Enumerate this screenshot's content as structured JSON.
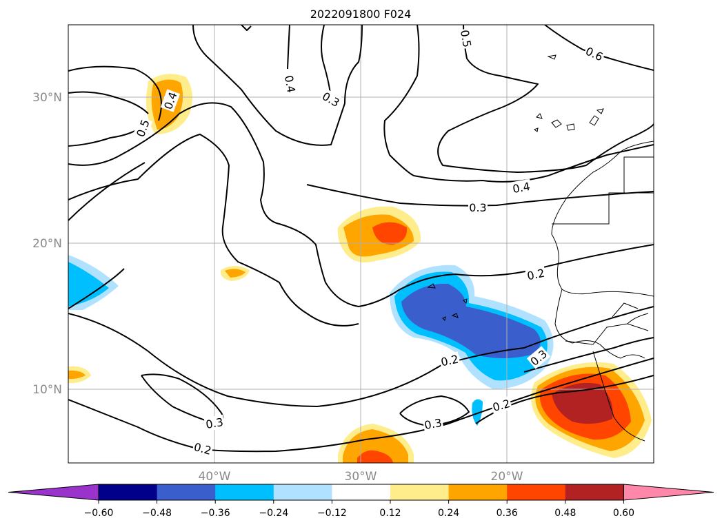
{
  "title": "2022091800 F024",
  "lat_labels": [
    "30°N",
    "20°N",
    "10°N"
  ],
  "lon_labels": [
    "40°W",
    "30°W",
    "20°W"
  ],
  "colorbar": {
    "colors": [
      "#9933cc",
      "#00008b",
      "#3a5fcd",
      "#00bfff",
      "#b0e2ff",
      "#ffffff",
      "#ffec8b",
      "#ffa500",
      "#ff4500",
      "#b22222",
      "#ff88aa"
    ],
    "tick_labels": [
      "−0.60",
      "−0.48",
      "−0.36",
      "−0.24",
      "−0.12",
      "0.12",
      "0.24",
      "0.36",
      "0.48",
      "0.60"
    ]
  },
  "contour_labels": [
    {
      "text": "0.5",
      "rot": 80
    },
    {
      "text": "0.6",
      "rot": 25
    },
    {
      "text": "0.4",
      "rot": 80
    },
    {
      "text": "0.3",
      "rot": 30
    },
    {
      "text": "0.4",
      "rot": -70
    },
    {
      "text": "0.5",
      "rot": -50
    },
    {
      "text": "0.4",
      "rot": -10
    },
    {
      "text": "0.3",
      "rot": 0
    },
    {
      "text": "0.2",
      "rot": -12
    },
    {
      "text": "0.2",
      "rot": -12
    },
    {
      "text": "0.3",
      "rot": -40
    },
    {
      "text": "0.3",
      "rot": -10
    },
    {
      "text": "0.2",
      "rot": -15
    },
    {
      "text": "0.3",
      "rot": -10
    },
    {
      "text": "0.2",
      "rot": 15
    }
  ]
}
